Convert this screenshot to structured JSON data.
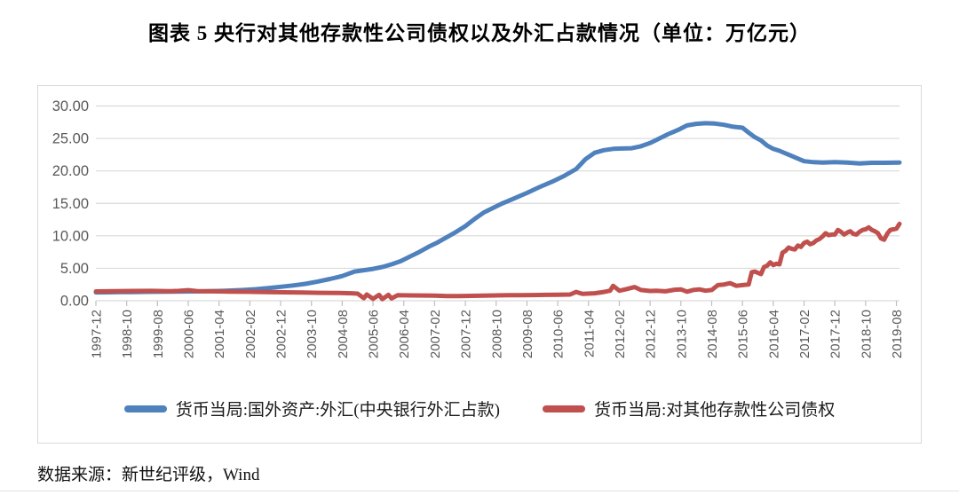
{
  "figure": {
    "title": "图表 5  央行对其他存款性公司债权以及外汇占款情况（单位：万亿元）",
    "source_note": "数据来源：新世纪评级，Wind"
  },
  "chart_data": {
    "type": "line",
    "title": "央行对其他存款性公司债权以及外汇占款情况",
    "unit": "万亿元",
    "grid": true,
    "legend_position": "bottom",
    "ylim": [
      0,
      30
    ],
    "y_ticks": [
      0,
      5,
      10,
      15,
      20,
      25,
      30
    ],
    "y_tick_labels": [
      "0.00",
      "5.00",
      "10.00",
      "15.00",
      "20.00",
      "25.00",
      "30.00"
    ],
    "x_start": "1997-12",
    "x_end": "2019-09",
    "months_per_tick": 10,
    "x_tick_labels": [
      "1997-12",
      "1998-10",
      "1999-08",
      "2000-06",
      "2001-04",
      "2002-02",
      "2002-12",
      "2003-10",
      "2004-08",
      "2005-06",
      "2006-04",
      "2007-02",
      "2007-12",
      "2008-10",
      "2009-08",
      "2010-06",
      "2011-04",
      "2012-02",
      "2012-12",
      "2013-10",
      "2014-08",
      "2015-06",
      "2016-04",
      "2017-02",
      "2017-12",
      "2018-10",
      "2019-08"
    ],
    "series": [
      {
        "name": "货币当局:国外资产:外汇(中央银行外汇占款)",
        "color": "#4F81BD",
        "points": [
          [
            "1997-12",
            1.28
          ],
          [
            "1998-04",
            1.3
          ],
          [
            "1998-08",
            1.32
          ],
          [
            "1998-12",
            1.34
          ],
          [
            "1999-04",
            1.36
          ],
          [
            "1999-08",
            1.38
          ],
          [
            "1999-12",
            1.41
          ],
          [
            "2000-04",
            1.42
          ],
          [
            "2000-08",
            1.44
          ],
          [
            "2000-12",
            1.47
          ],
          [
            "2001-04",
            1.5
          ],
          [
            "2001-08",
            1.57
          ],
          [
            "2001-12",
            1.65
          ],
          [
            "2002-04",
            1.78
          ],
          [
            "2002-08",
            1.95
          ],
          [
            "2002-12",
            2.15
          ],
          [
            "2003-04",
            2.35
          ],
          [
            "2003-08",
            2.6
          ],
          [
            "2003-12",
            2.95
          ],
          [
            "2004-04",
            3.35
          ],
          [
            "2004-08",
            3.8
          ],
          [
            "2004-12",
            4.5
          ],
          [
            "2005-03",
            4.7
          ],
          [
            "2005-06",
            4.9
          ],
          [
            "2005-09",
            5.2
          ],
          [
            "2005-12",
            5.6
          ],
          [
            "2006-03",
            6.1
          ],
          [
            "2006-06",
            6.8
          ],
          [
            "2006-09",
            7.5
          ],
          [
            "2006-12",
            8.3
          ],
          [
            "2007-03",
            9.0
          ],
          [
            "2007-06",
            9.8
          ],
          [
            "2007-09",
            10.6
          ],
          [
            "2007-12",
            11.5
          ],
          [
            "2008-03",
            12.6
          ],
          [
            "2008-06",
            13.6
          ],
          [
            "2008-09",
            14.3
          ],
          [
            "2008-12",
            15.0
          ],
          [
            "2009-04",
            15.8
          ],
          [
            "2009-08",
            16.6
          ],
          [
            "2009-12",
            17.5
          ],
          [
            "2010-04",
            18.3
          ],
          [
            "2010-08",
            19.2
          ],
          [
            "2010-12",
            20.3
          ],
          [
            "2011-03",
            21.8
          ],
          [
            "2011-06",
            22.8
          ],
          [
            "2011-09",
            23.2
          ],
          [
            "2011-12",
            23.4
          ],
          [
            "2012-03",
            23.45
          ],
          [
            "2012-06",
            23.5
          ],
          [
            "2012-09",
            23.8
          ],
          [
            "2012-12",
            24.3
          ],
          [
            "2013-03",
            25.0
          ],
          [
            "2013-06",
            25.7
          ],
          [
            "2013-09",
            26.3
          ],
          [
            "2013-12",
            27.0
          ],
          [
            "2014-03",
            27.25
          ],
          [
            "2014-06",
            27.35
          ],
          [
            "2014-09",
            27.3
          ],
          [
            "2014-12",
            27.1
          ],
          [
            "2015-03",
            26.8
          ],
          [
            "2015-06",
            26.65
          ],
          [
            "2015-08",
            25.9
          ],
          [
            "2015-10",
            25.2
          ],
          [
            "2015-12",
            24.7
          ],
          [
            "2016-02",
            23.9
          ],
          [
            "2016-04",
            23.4
          ],
          [
            "2016-06",
            23.1
          ],
          [
            "2016-08",
            22.7
          ],
          [
            "2016-10",
            22.3
          ],
          [
            "2016-12",
            21.9
          ],
          [
            "2017-02",
            21.5
          ],
          [
            "2017-05",
            21.35
          ],
          [
            "2017-08",
            21.3
          ],
          [
            "2017-12",
            21.35
          ],
          [
            "2018-04",
            21.3
          ],
          [
            "2018-08",
            21.15
          ],
          [
            "2018-12",
            21.25
          ],
          [
            "2019-04",
            21.25
          ],
          [
            "2019-09",
            21.3
          ]
        ]
      },
      {
        "name": "货币当局:对其他存款性公司债权",
        "color": "#C0504D",
        "points": [
          [
            "1997-12",
            1.44
          ],
          [
            "1998-06",
            1.46
          ],
          [
            "1998-12",
            1.5
          ],
          [
            "1999-06",
            1.52
          ],
          [
            "1999-12",
            1.47
          ],
          [
            "2000-03",
            1.52
          ],
          [
            "2000-06",
            1.62
          ],
          [
            "2000-09",
            1.48
          ],
          [
            "2001-01",
            1.45
          ],
          [
            "2001-07",
            1.41
          ],
          [
            "2002-01",
            1.38
          ],
          [
            "2002-07",
            1.34
          ],
          [
            "2003-01",
            1.3
          ],
          [
            "2003-07",
            1.26
          ],
          [
            "2004-01",
            1.22
          ],
          [
            "2004-07",
            1.2
          ],
          [
            "2004-11",
            1.15
          ],
          [
            "2005-01",
            1.1
          ],
          [
            "2005-03",
            0.4
          ],
          [
            "2005-04",
            0.95
          ],
          [
            "2005-06",
            0.3
          ],
          [
            "2005-08",
            0.9
          ],
          [
            "2005-09",
            0.25
          ],
          [
            "2005-11",
            0.9
          ],
          [
            "2005-12",
            0.35
          ],
          [
            "2006-02",
            0.85
          ],
          [
            "2006-06",
            0.82
          ],
          [
            "2006-10",
            0.8
          ],
          [
            "2007-02",
            0.78
          ],
          [
            "2007-06",
            0.73
          ],
          [
            "2007-10",
            0.72
          ],
          [
            "2008-02",
            0.75
          ],
          [
            "2008-06",
            0.78
          ],
          [
            "2008-10",
            0.82
          ],
          [
            "2009-02",
            0.85
          ],
          [
            "2009-06",
            0.86
          ],
          [
            "2009-10",
            0.88
          ],
          [
            "2010-02",
            0.9
          ],
          [
            "2010-06",
            0.93
          ],
          [
            "2010-10",
            0.95
          ],
          [
            "2010-12",
            1.35
          ],
          [
            "2011-02",
            1.05
          ],
          [
            "2011-06",
            1.15
          ],
          [
            "2011-09",
            1.35
          ],
          [
            "2011-11",
            1.55
          ],
          [
            "2011-12",
            2.3
          ],
          [
            "2012-02",
            1.55
          ],
          [
            "2012-04",
            1.75
          ],
          [
            "2012-07",
            2.1
          ],
          [
            "2012-09",
            1.65
          ],
          [
            "2012-12",
            1.5
          ],
          [
            "2013-02",
            1.55
          ],
          [
            "2013-05",
            1.45
          ],
          [
            "2013-08",
            1.7
          ],
          [
            "2013-10",
            1.75
          ],
          [
            "2013-12",
            1.4
          ],
          [
            "2014-02",
            1.65
          ],
          [
            "2014-04",
            1.75
          ],
          [
            "2014-06",
            1.55
          ],
          [
            "2014-08",
            1.65
          ],
          [
            "2014-10",
            2.4
          ],
          [
            "2014-12",
            2.5
          ],
          [
            "2015-02",
            2.7
          ],
          [
            "2015-04",
            2.3
          ],
          [
            "2015-06",
            2.4
          ],
          [
            "2015-08",
            2.5
          ],
          [
            "2015-09",
            4.4
          ],
          [
            "2015-10",
            4.5
          ],
          [
            "2015-12",
            4.1
          ],
          [
            "2016-01",
            5.2
          ],
          [
            "2016-02",
            5.4
          ],
          [
            "2016-03",
            5.9
          ],
          [
            "2016-04",
            5.5
          ],
          [
            "2016-05",
            5.7
          ],
          [
            "2016-06",
            5.6
          ],
          [
            "2016-07",
            7.4
          ],
          [
            "2016-08",
            7.7
          ],
          [
            "2016-09",
            8.2
          ],
          [
            "2016-10",
            8.0
          ],
          [
            "2016-11",
            7.9
          ],
          [
            "2016-12",
            8.5
          ],
          [
            "2017-01",
            8.3
          ],
          [
            "2017-02",
            8.9
          ],
          [
            "2017-03",
            9.1
          ],
          [
            "2017-04",
            8.7
          ],
          [
            "2017-05",
            8.9
          ],
          [
            "2017-06",
            9.3
          ],
          [
            "2017-07",
            9.5
          ],
          [
            "2017-08",
            9.9
          ],
          [
            "2017-09",
            10.4
          ],
          [
            "2017-10",
            10.1
          ],
          [
            "2017-11",
            10.2
          ],
          [
            "2017-12",
            10.2
          ],
          [
            "2018-01",
            10.9
          ],
          [
            "2018-02",
            10.6
          ],
          [
            "2018-03",
            10.2
          ],
          [
            "2018-04",
            10.5
          ],
          [
            "2018-05",
            10.7
          ],
          [
            "2018-06",
            10.3
          ],
          [
            "2018-07",
            10.2
          ],
          [
            "2018-08",
            10.6
          ],
          [
            "2018-09",
            10.9
          ],
          [
            "2018-10",
            11.0
          ],
          [
            "2018-11",
            11.3
          ],
          [
            "2018-12",
            10.9
          ],
          [
            "2019-01",
            10.7
          ],
          [
            "2019-02",
            10.4
          ],
          [
            "2019-03",
            9.6
          ],
          [
            "2019-04",
            9.4
          ],
          [
            "2019-05",
            10.3
          ],
          [
            "2019-06",
            10.9
          ],
          [
            "2019-07",
            11.0
          ],
          [
            "2019-08",
            11.1
          ],
          [
            "2019-09",
            11.85
          ]
        ]
      }
    ]
  }
}
